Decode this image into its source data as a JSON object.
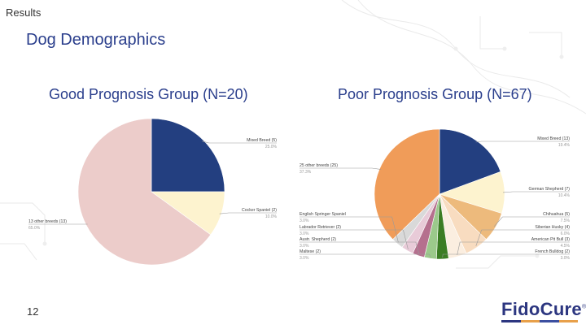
{
  "header": {
    "section": "Results",
    "title": "Dog Demographics"
  },
  "footer": {
    "page_number": "12",
    "logo_text": "FidoCure",
    "logo_mark": "®"
  },
  "brand_colors": [
    "#2c3680",
    "#e8a04a",
    "#3c4fa0"
  ],
  "chart_data": [
    {
      "type": "pie",
      "title": "Good Prognosis Group (N=20)",
      "slices": [
        {
          "label": "Mixed Breed (5)",
          "value": 25.0,
          "pct_label": "25.0%",
          "color": "#233f80"
        },
        {
          "label": "Cocker Spaniel (2)",
          "value": 10.0,
          "pct_label": "10.0%",
          "color": "#fdf3cf"
        },
        {
          "label": "13 other breeds (13)",
          "value": 65.0,
          "pct_label": "65.0%",
          "color": "#ecccca"
        }
      ]
    },
    {
      "type": "pie",
      "title": "Poor Prognosis Group (N=67)",
      "slices": [
        {
          "label": "Mixed Breed (13)",
          "value": 19.4,
          "pct_label": "19.4%",
          "color": "#233f80"
        },
        {
          "label": "German Shepherd (7)",
          "value": 10.4,
          "pct_label": "10.4%",
          "color": "#fdf3cf"
        },
        {
          "label": "Chihuahua (5)",
          "value": 7.5,
          "pct_label": "7.5%",
          "color": "#edba7c"
        },
        {
          "label": "Siberian Husky (4)",
          "value": 6.0,
          "pct_label": "6.0%",
          "color": "#f8dcc0"
        },
        {
          "label": "American Pit Bull (3)",
          "value": 4.5,
          "pct_label": "4.5%",
          "color": "#fbeee0"
        },
        {
          "label": "French Bulldog (2)",
          "value": 3.0,
          "pct_label": "3.0%",
          "color": "#3b7d24"
        },
        {
          "label": "Maltese (2)",
          "value": 3.0,
          "pct_label": "3.0%",
          "color": "#9bc98b"
        },
        {
          "label": "Austr. Shepherd (2)",
          "value": 3.0,
          "pct_label": "3.0%",
          "color": "#b5708e"
        },
        {
          "label": "Labrador Retriever (2)",
          "value": 3.0,
          "pct_label": "3.0%",
          "color": "#e8cbd8"
        },
        {
          "label": "English Springer Spaniel",
          "value": 3.0,
          "pct_label": "3.0%",
          "color": "#d9d9d9"
        },
        {
          "label": "25 other breeds (25)",
          "value": 37.3,
          "pct_label": "37.3%",
          "color": "#f09c59"
        }
      ]
    }
  ]
}
